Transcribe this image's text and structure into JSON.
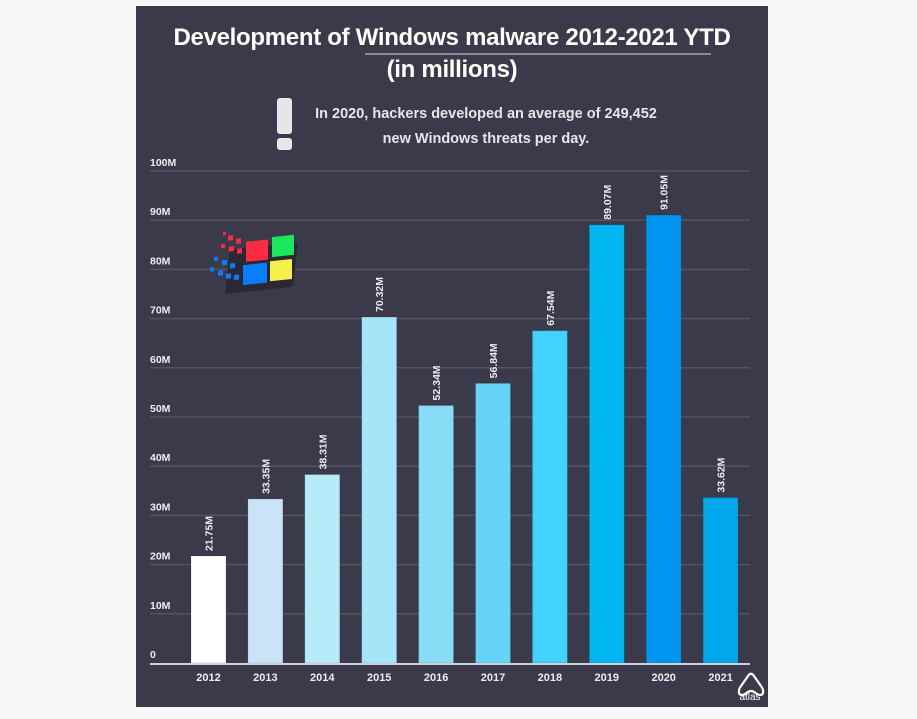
{
  "header": {
    "title_line1": "Development of Windows malware 2012-2021 YTD",
    "title_line2": "(in millions)",
    "note_line1": "In 2020, hackers developed an average of 249,452",
    "note_line2": "new Windows threats per day.",
    "note_icon": "exclamation-icon"
  },
  "logo": {
    "icon": "windows-flag-logo",
    "colors": [
      "#ff2b45",
      "#19e85a",
      "#0a7cff",
      "#f6f04a"
    ]
  },
  "brand": {
    "icon": "atlas-logo-icon",
    "label": "atlas"
  },
  "chart_data": {
    "type": "bar",
    "title": "Development of Windows malware 2012-2021 YTD (in millions)",
    "xlabel": "",
    "ylabel": "",
    "categories": [
      "2012",
      "2013",
      "2014",
      "2015",
      "2016",
      "2017",
      "2018",
      "2019",
      "2020",
      "2021"
    ],
    "values": [
      21.75,
      33.35,
      38.31,
      70.32,
      52.34,
      56.84,
      67.54,
      89.07,
      91.05,
      33.62
    ],
    "data_labels": [
      "21.75M",
      "33.35M",
      "38.31M",
      "70.32M",
      "52.34M",
      "56.84M",
      "67.54M",
      "89.07M",
      "91.05M",
      "33.62M"
    ],
    "bar_colors": [
      "#ffffff",
      "#c9e4f8",
      "#b6ebf9",
      "#a4e5f8",
      "#89dcf6",
      "#66d4f6",
      "#42d2fb",
      "#00b7f2",
      "#0096f0",
      "#00a7ea"
    ],
    "ylim": [
      0,
      100
    ],
    "yticks": [
      0,
      10,
      20,
      30,
      40,
      50,
      60,
      70,
      80,
      90,
      100
    ],
    "ytick_labels": [
      "0",
      "10M",
      "20M",
      "30M",
      "40M",
      "50M",
      "60M",
      "70M",
      "80M",
      "90M",
      "100M"
    ],
    "grid": true,
    "legend": "none"
  }
}
